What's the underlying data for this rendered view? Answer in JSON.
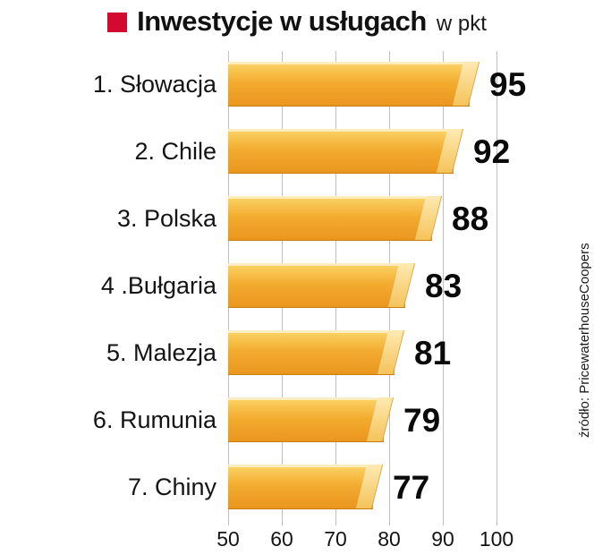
{
  "header": {
    "title": "Inwestycje w usługach",
    "unit": "w pkt"
  },
  "source": "źródło: PricewaterhouseCoopers",
  "colors": {
    "accent_red": "#d20a2e",
    "bar_body": "#f3ab2e",
    "bar_highlight": "#fdeab2",
    "bar_shadow": "#ea961e",
    "grid": "#bfbfbf",
    "text": "#111111"
  },
  "chart_data": {
    "type": "bar",
    "orientation": "horizontal",
    "title": "Inwestycje w usługach",
    "unit_label": "w pkt",
    "categories": [
      "1. Słowacja",
      "2. Chile",
      "3. Polska",
      "4 .Bułgaria",
      "5. Malezja",
      "6. Rumunia",
      "7. Chiny"
    ],
    "values": [
      95,
      92,
      88,
      83,
      81,
      79,
      77
    ],
    "xlim": [
      50,
      100
    ],
    "xticks": [
      50,
      60,
      70,
      80,
      90,
      100
    ],
    "grid": true,
    "legend": "none",
    "value_labels": "right-of-bar",
    "source": "źródło: PricewaterhouseCoopers"
  }
}
